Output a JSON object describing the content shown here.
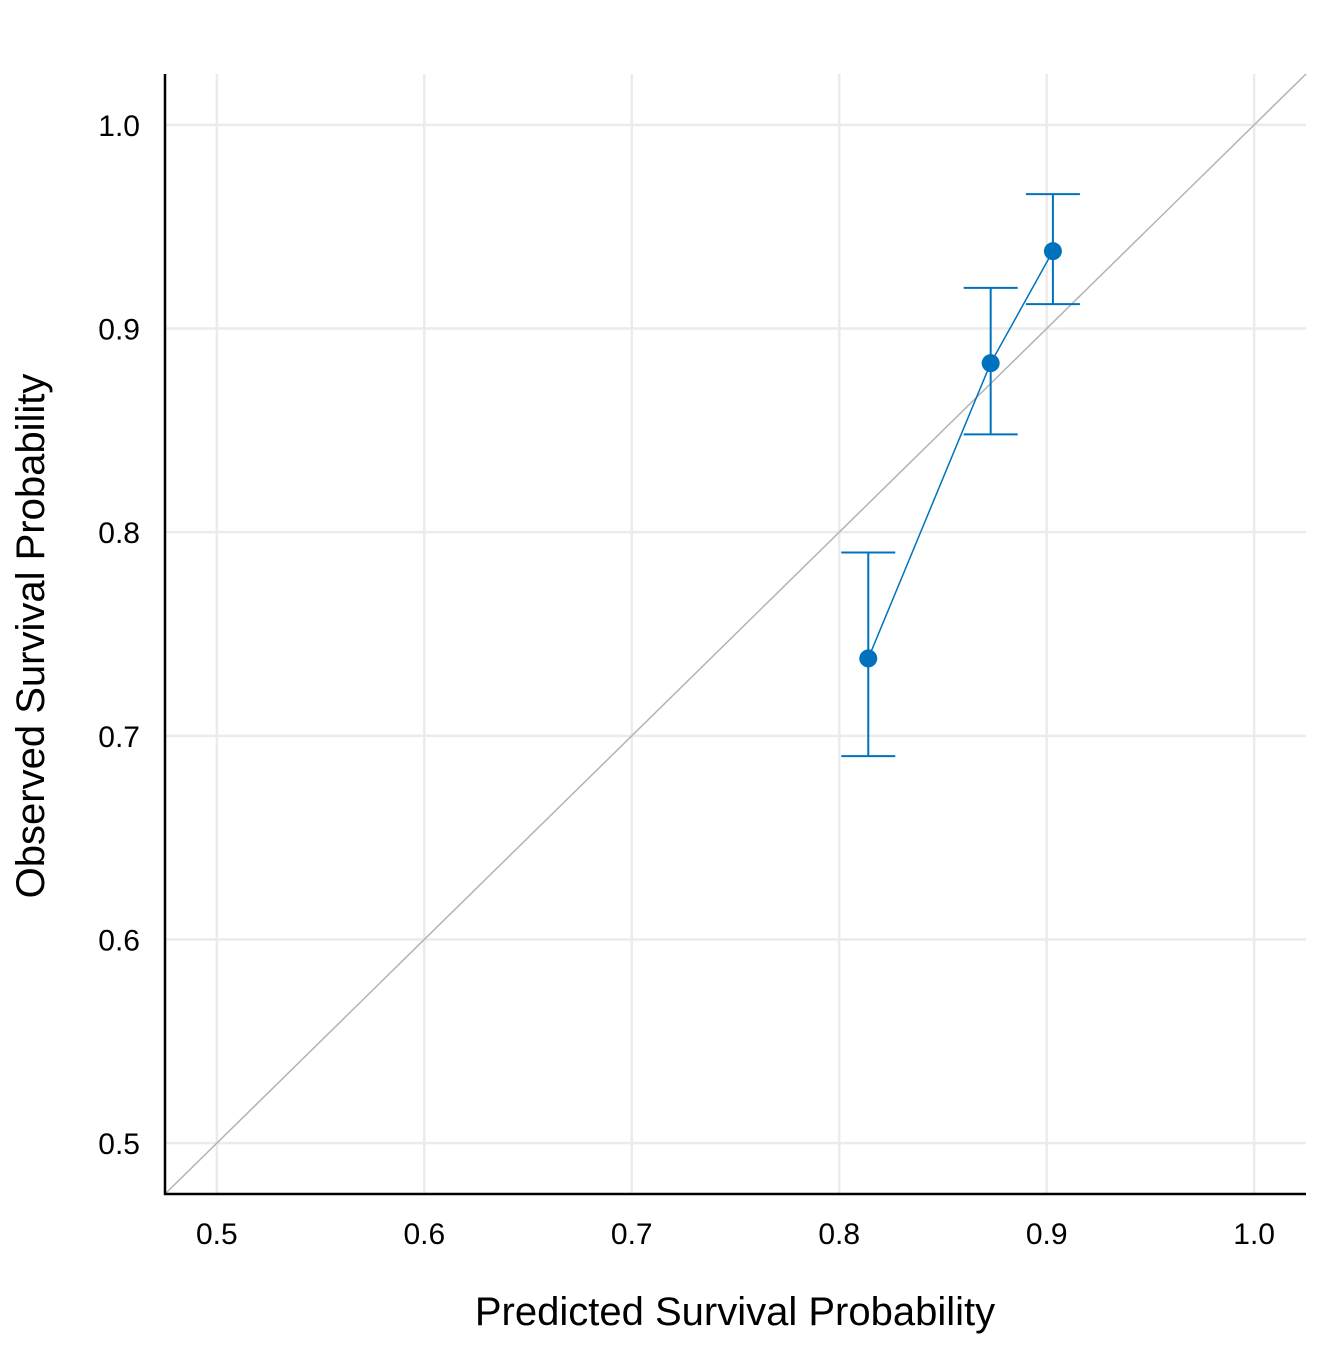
{
  "chart_data": {
    "type": "scatter",
    "title": "",
    "xlabel": "Predicted Survival Probability",
    "ylabel": "Observed Survival Probability",
    "xlim": [
      0.475,
      1.025
    ],
    "ylim": [
      0.475,
      1.025
    ],
    "x_ticks": [
      0.5,
      0.6,
      0.7,
      0.8,
      0.9,
      1.0
    ],
    "x_tick_labels": [
      "0.5",
      "0.6",
      "0.7",
      "0.8",
      "0.9",
      "1.0"
    ],
    "y_ticks": [
      0.5,
      0.6,
      0.7,
      0.8,
      0.9,
      1.0
    ],
    "y_tick_labels": [
      "0.5",
      "0.6",
      "0.7",
      "0.8",
      "0.9",
      "1.0"
    ],
    "grid": true,
    "reference_line": {
      "from": [
        0.475,
        0.475
      ],
      "to": [
        1.025,
        1.025
      ],
      "color": "#b3b3b3"
    },
    "series": [
      {
        "color": "#0072BD",
        "connect_points": true,
        "points": [
          {
            "x": 0.814,
            "y": 0.738,
            "lower": 0.69,
            "upper": 0.79
          },
          {
            "x": 0.873,
            "y": 0.883,
            "lower": 0.848,
            "upper": 0.92
          },
          {
            "x": 0.903,
            "y": 0.938,
            "lower": 0.912,
            "upper": 0.966
          }
        ]
      }
    ]
  }
}
